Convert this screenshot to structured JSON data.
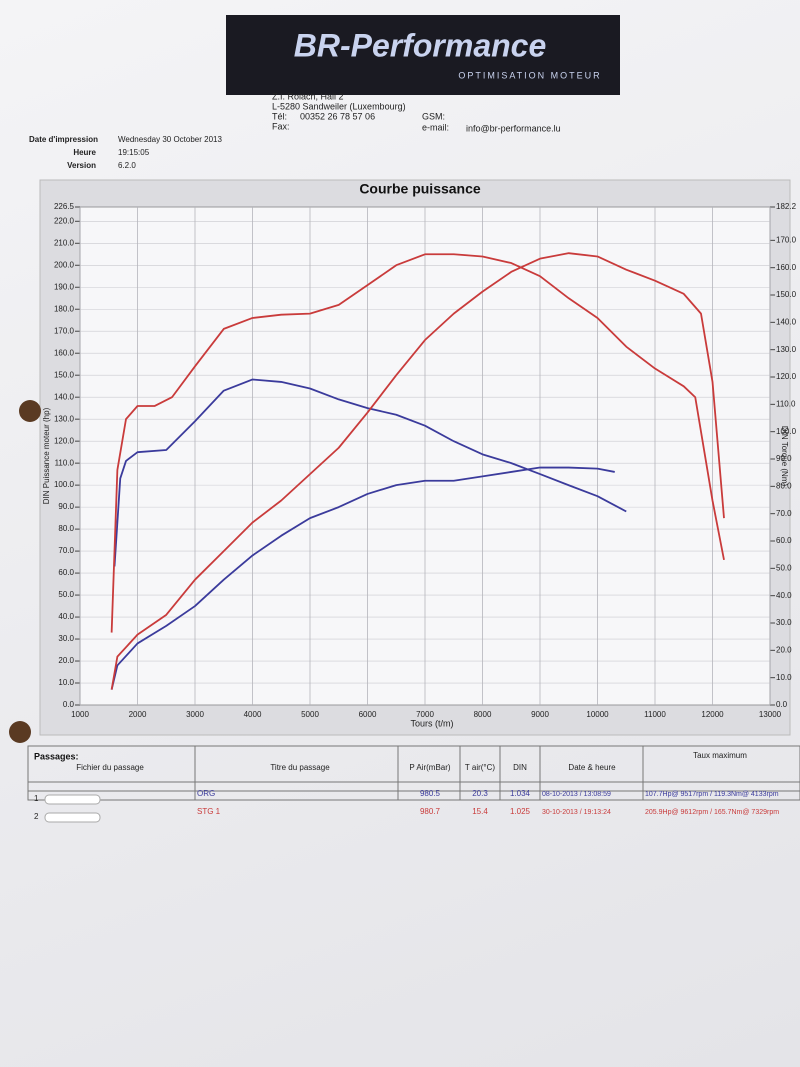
{
  "header": {
    "logo": "BR-Performance",
    "tagline": "OPTIMISATION MOTEUR",
    "address1": "Z.I. Rolach, Hall 2",
    "address2": "L-5280 Sandweiler (Luxembourg)",
    "tel_label": "Tél:",
    "tel": "00352 26 78 57 06",
    "gsm_label": "GSM:",
    "fax_label": "Fax:",
    "email_label": "e-mail:",
    "email": "info@br-performance.lu"
  },
  "info": {
    "date_label": "Date d'impression",
    "date": "Wednesday 30 October 2013",
    "time_label": "Heure",
    "time": "19:15:05",
    "version_label": "Version",
    "version": "6.2.0"
  },
  "chart_data": {
    "type": "line",
    "title": "Courbe puissance",
    "x_label": "Tours (t/m)",
    "y_label": "DIN Puissance moteur (hp)",
    "y2_label": "DIN Torque (Nm)",
    "grid": true,
    "xlim": [
      1000,
      13000
    ],
    "xticks": [
      1000,
      2000,
      3000,
      4000,
      5000,
      6000,
      7000,
      8000,
      9000,
      10000,
      11000,
      12000,
      13000
    ],
    "ylim": [
      0,
      226.5
    ],
    "yticks": [
      {
        "value": 0,
        "label": "0.0"
      },
      {
        "value": 10,
        "label": "10.0"
      },
      {
        "value": 20,
        "label": "20.0"
      },
      {
        "value": 30,
        "label": "30.0"
      },
      {
        "value": 40,
        "label": "40.0"
      },
      {
        "value": 50,
        "label": "50.0"
      },
      {
        "value": 60,
        "label": "60.0"
      },
      {
        "value": 70,
        "label": "70.0"
      },
      {
        "value": 80,
        "label": "80.0"
      },
      {
        "value": 90,
        "label": "90.0"
      },
      {
        "value": 100,
        "label": "100.0"
      },
      {
        "value": 110,
        "label": "110.0"
      },
      {
        "value": 120,
        "label": "120.0"
      },
      {
        "value": 130,
        "label": "130.0"
      },
      {
        "value": 140,
        "label": "140.0"
      },
      {
        "value": 150,
        "label": "150.0"
      },
      {
        "value": 160,
        "label": "160.0"
      },
      {
        "value": 170,
        "label": "170.0"
      },
      {
        "value": 180,
        "label": "180.0"
      },
      {
        "value": 190,
        "label": "190.0"
      },
      {
        "value": 200,
        "label": "200.0"
      },
      {
        "value": 210,
        "label": "210.0"
      },
      {
        "value": 220,
        "label": "220.0"
      },
      226.5
    ],
    "y2lim": [
      0,
      182.2
    ],
    "y2ticks": [
      {
        "value": 0,
        "label": "0.0"
      },
      {
        "value": 10,
        "label": "10.0"
      },
      {
        "value": 20,
        "label": "20.0"
      },
      {
        "value": 30,
        "label": "30.0"
      },
      {
        "value": 40,
        "label": "40.0"
      },
      {
        "value": 50,
        "label": "50.0"
      },
      {
        "value": 60,
        "label": "60.0"
      },
      {
        "value": 70,
        "label": "70.0"
      },
      {
        "value": 80,
        "label": "80.0"
      },
      {
        "value": 90,
        "label": "90.0"
      },
      {
        "value": 100,
        "label": "100.0"
      },
      {
        "value": 110,
        "label": "110.0"
      },
      {
        "value": 120,
        "label": "120.0"
      },
      {
        "value": 130,
        "label": "130.0"
      },
      {
        "value": 140,
        "label": "140.0"
      },
      {
        "value": 150,
        "label": "150.0"
      },
      {
        "value": 160,
        "label": "160.0"
      },
      {
        "value": 170,
        "label": "170.0"
      },
      182.2
    ],
    "series": [
      {
        "color": "#3b3b9c",
        "x": [
          1550,
          1650,
          2000,
          2500,
          3000,
          3500,
          4000,
          4500,
          5000,
          5500,
          6000,
          6500,
          7000,
          7500,
          8000,
          8500,
          9000,
          9500,
          10000,
          10300
        ],
        "values": [
          7,
          18,
          28,
          36,
          45,
          57,
          68,
          77,
          85,
          90,
          96,
          100,
          102,
          102,
          104,
          106,
          108,
          108,
          107.5,
          106
        ]
      },
      {
        "color": "#3b3b9c",
        "axis": "y2",
        "x": [
          1600,
          1700,
          1800,
          2000,
          2500,
          3000,
          3500,
          4000,
          4500,
          5000,
          5500,
          6000,
          6500,
          7000,
          7500,
          8000,
          8500,
          9000,
          9500,
          10000,
          10500
        ],
        "values": [
          50.7,
          82.9,
          89.3,
          92.5,
          93.3,
          103.8,
          115,
          119.1,
          118.2,
          115.8,
          111.8,
          108.6,
          106.2,
          102.2,
          96.5,
          91.7,
          88.5,
          84.5,
          80.4,
          76.4,
          70.8
        ]
      },
      {
        "color": "#c93b3b",
        "x": [
          1550,
          1650,
          2000,
          2500,
          3000,
          3500,
          4000,
          4500,
          5000,
          5500,
          6000,
          6500,
          7000,
          7500,
          8000,
          8500,
          9000,
          9500,
          10000,
          10500,
          11000,
          11500,
          11800,
          12000,
          12200
        ],
        "values": [
          7,
          22,
          32,
          41,
          57,
          70,
          83,
          93,
          105,
          117,
          133,
          150,
          166,
          178,
          188,
          197,
          203,
          205.5,
          204,
          198,
          193,
          187,
          178,
          147,
          85
        ]
      },
      {
        "color": "#c93b3b",
        "axis": "y2",
        "x": [
          1550,
          1650,
          1800,
          2000,
          2300,
          2600,
          3000,
          3500,
          4000,
          4500,
          5000,
          5500,
          6000,
          6500,
          7000,
          7500,
          8000,
          8500,
          9000,
          9500,
          10000,
          10500,
          11000,
          11500,
          11700,
          12000,
          12200
        ],
        "values": [
          26.5,
          86,
          104.6,
          109.4,
          109.4,
          112.6,
          123.9,
          137.6,
          141.6,
          142.8,
          143.2,
          146.4,
          153.6,
          160.9,
          164.9,
          164.9,
          164.1,
          161.7,
          156.9,
          148.8,
          141.6,
          131.1,
          123.1,
          116.6,
          112.6,
          74.8,
          53.1
        ]
      }
    ]
  },
  "table": {
    "title": "Passages:",
    "header": [
      "Fichier du passage",
      "Titre du passage",
      "P Air(mBar)",
      "T air(°C)",
      "DIN",
      "Date & heure",
      "Taux maximum"
    ],
    "rows": [
      [
        "1",
        "ORG",
        "980.5",
        "20.3",
        "1.034",
        "08-10-2013 / 13:08:59",
        "107.7Hp@ 9517rpm / 119.3Nm@ 4133rpm"
      ],
      [
        "2",
        "STG 1",
        "980.7",
        "15.4",
        "1.025",
        "30-10-2013 / 19:13:24",
        "205.9Hp@ 9612rpm / 165.7Nm@ 7329rpm"
      ]
    ]
  }
}
